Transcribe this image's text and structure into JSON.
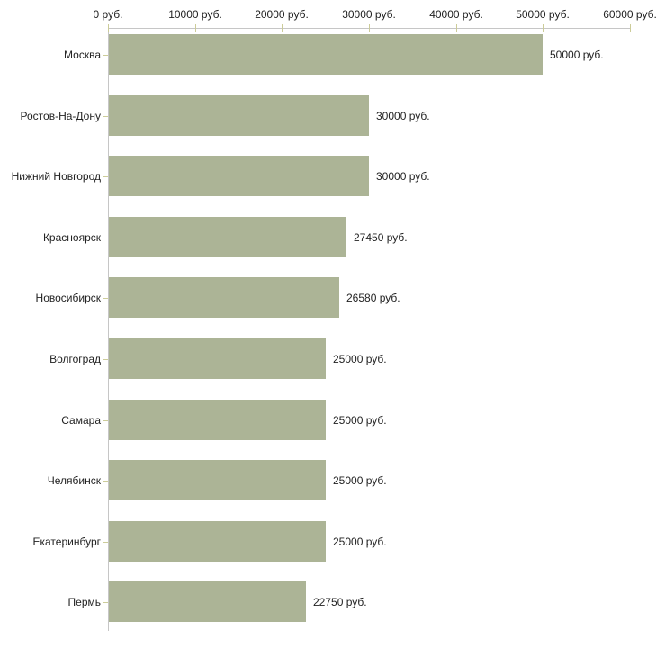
{
  "chart_data": {
    "type": "bar",
    "orientation": "horizontal",
    "title": "",
    "categories": [
      "Москва",
      "Ростов-На-Дону",
      "Нижний Новгород",
      "Красноярск",
      "Новосибирск",
      "Волгоград",
      "Самара",
      "Челябинск",
      "Екатеринбург",
      "Пермь"
    ],
    "values": [
      50000,
      30000,
      30000,
      27450,
      26580,
      25000,
      25000,
      25000,
      25000,
      22750
    ],
    "value_labels": [
      "50000 руб.",
      "30000 руб.",
      "30000 руб.",
      "27450 руб.",
      "26580 руб.",
      "25000 руб.",
      "25000 руб.",
      "25000 руб.",
      "25000 руб.",
      "22750 руб."
    ],
    "x_ticks": [
      0,
      10000,
      20000,
      30000,
      40000,
      50000,
      60000
    ],
    "x_tick_labels": [
      "0 руб.",
      "10000 руб.",
      "20000 руб.",
      "30000 руб.",
      "40000 руб.",
      "50000 руб.",
      "60000 руб."
    ],
    "xlim": [
      0,
      60000
    ],
    "unit": "руб.",
    "grid": false,
    "legend": null,
    "xlabel": "",
    "ylabel": "",
    "colors": {
      "bar": "#acb496",
      "axis_line": "#c6c6c6",
      "tick": "#cccc99",
      "text": "#222222",
      "background": "#ffffff"
    }
  }
}
